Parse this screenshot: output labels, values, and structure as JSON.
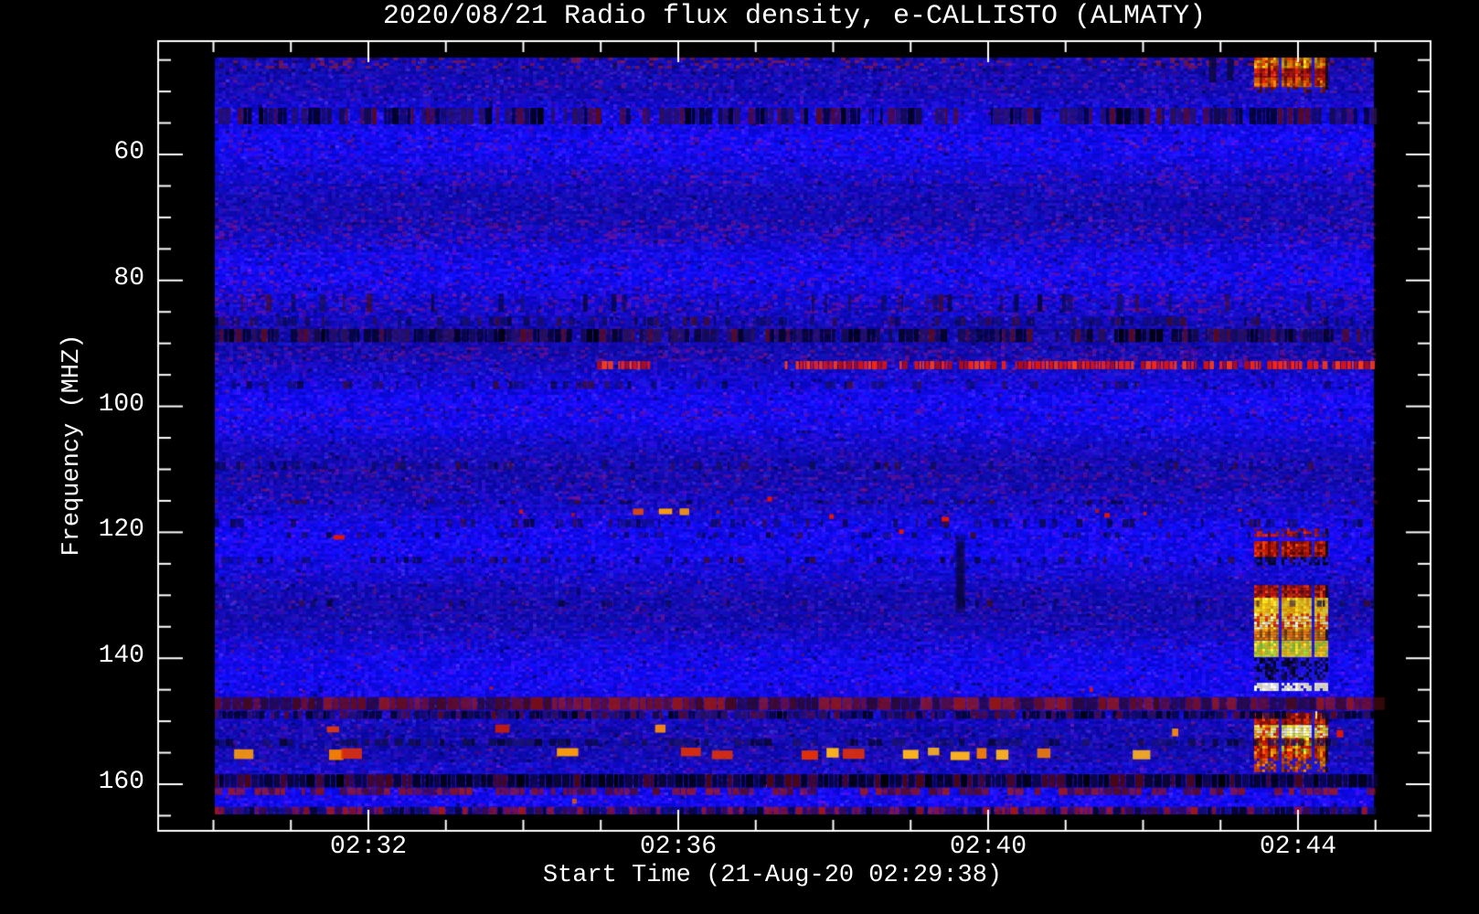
{
  "chart_data": {
    "type": "heatmap",
    "variant": "solar-radio-spectrogram",
    "title": "2020/08/21  Radio flux density, e-CALLISTO (ALMATY)",
    "xlabel": "Start Time (21-Aug-20 02:29:38)",
    "ylabel": "Frequency (MHZ)",
    "x_axis": {
      "tick_labels": [
        "02:32",
        "02:36",
        "02:40",
        "02:44"
      ],
      "minor_tick_step_seconds": 60,
      "axis_start": "02:30:00",
      "axis_end": "02:45:00"
    },
    "y_axis": {
      "tick_labels": [
        "60",
        "80",
        "100",
        "120",
        "140",
        "160"
      ],
      "minor_tick_step_mhz": 5,
      "unit": "MHz",
      "direction": "increasing-downward"
    },
    "data_extent": {
      "time": [
        "02:30:01",
        "02:44:59"
      ],
      "freq_mhz": [
        44.6,
        164.8
      ]
    },
    "palette": {
      "background_blue": "#1919e1",
      "dim_blue": "#0d0dc0",
      "mottle_purple": "#8c1482",
      "rfi_red": "#e11505",
      "rfi_orange": "#ff9d08",
      "burst_yellow": "#ffe63a",
      "burst_white": "#ffffff",
      "burst_green": "#9cd43a",
      "band_black": "#03031e",
      "band_navy": "#0e0e4c",
      "band_darkred": "#7a0e10",
      "frame_white": "#ffffff"
    },
    "rfi_bands": [
      {
        "freq_mhz": [
          44.6,
          46.0
        ],
        "kind": "mottle-strong",
        "intensity": 0.55
      },
      {
        "freq_mhz": [
          48.2,
          49.4
        ],
        "kind": "mottle",
        "intensity": 0.3
      },
      {
        "freq_mhz": [
          52.6,
          55.2
        ],
        "kind": "black-dash",
        "intensity": 0.72
      },
      {
        "freq_mhz": [
          57.2,
          59.0
        ],
        "kind": "mottle",
        "intensity": 0.3
      },
      {
        "freq_mhz": [
          62.4,
          64.6
        ],
        "kind": "mottle",
        "intensity": 0.28
      },
      {
        "freq_mhz": [
          70.0,
          74.4
        ],
        "kind": "mottle",
        "intensity": 0.38
      },
      {
        "freq_mhz": [
          77.0,
          79.0
        ],
        "kind": "mottle",
        "intensity": 0.25
      },
      {
        "freq_mhz": [
          79.6,
          81.6
        ],
        "kind": "mottle",
        "intensity": 0.3
      },
      {
        "freq_mhz": [
          82.2,
          85.0
        ],
        "kind": "mottle-dash",
        "intensity": 0.5
      },
      {
        "freq_mhz": [
          85.8,
          87.2
        ],
        "kind": "dark-dash",
        "intensity": 0.5
      },
      {
        "freq_mhz": [
          87.7,
          89.8
        ],
        "kind": "black-dash",
        "intensity": 0.85
      },
      {
        "freq_mhz": [
          90.6,
          92.4
        ],
        "kind": "mottle",
        "intensity": 0.4
      },
      {
        "freq_mhz": [
          92.8,
          94.1
        ],
        "kind": "red-dash",
        "intensity": 0.9,
        "segments": [
          [
            "02:34:57",
            "02:35:43"
          ],
          [
            "02:37:20",
            "02:44:59"
          ]
        ]
      },
      {
        "freq_mhz": [
          96.0,
          97.2
        ],
        "kind": "dark-dash",
        "intensity": 0.3
      },
      {
        "freq_mhz": [
          100.3,
          102.3
        ],
        "kind": "mottle",
        "intensity": 0.25
      },
      {
        "freq_mhz": [
          108.8,
          110.0
        ],
        "kind": "dark-dash",
        "intensity": 0.3
      },
      {
        "freq_mhz": [
          110.0,
          115.2
        ],
        "kind": "mottle-wave",
        "intensity": 0.4
      },
      {
        "freq_mhz": [
          114.9,
          115.5
        ],
        "kind": "dark-dash",
        "intensity": 0.3
      },
      {
        "freq_mhz": [
          116.2,
          117.7
        ],
        "kind": "red-speckle",
        "intensity": 0.25,
        "orange_segments": [
          [
            "02:35:01",
            "02:35:39"
          ],
          [
            "02:35:45",
            "02:35:51"
          ],
          [
            "02:36:01",
            "02:36:11"
          ]
        ]
      },
      {
        "freq_mhz": [
          117.9,
          119.2
        ],
        "kind": "dark-dash",
        "intensity": 0.35
      },
      {
        "freq_mhz": [
          120.0,
          120.9
        ],
        "kind": "dark-dash",
        "intensity": 0.25
      },
      {
        "freq_mhz": [
          123.9,
          124.9
        ],
        "kind": "dark-dash",
        "intensity": 0.28
      },
      {
        "freq_mhz": [
          130.8,
          131.8
        ],
        "kind": "dark-dash",
        "intensity": 0.18
      },
      {
        "freq_mhz": [
          143.4,
          145.6
        ],
        "kind": "red-speckle",
        "intensity": 0.1
      },
      {
        "freq_mhz": [
          146.2,
          148.2
        ],
        "kind": "darkred-blocks",
        "intensity": 0.88
      },
      {
        "freq_mhz": [
          148.4,
          149.6
        ],
        "kind": "black-dash",
        "intensity": 0.85,
        "bright_ticks": true
      },
      {
        "freq_mhz": [
          150.4,
          152.6
        ],
        "kind": "warm-blobs",
        "intensity": 0.3
      },
      {
        "freq_mhz": [
          152.8,
          153.9
        ],
        "kind": "navy-dash",
        "intensity": 0.6
      },
      {
        "freq_mhz": [
          154.2,
          156.2
        ],
        "kind": "orange-dash",
        "intensity": 0.9,
        "segments": [
          [
            "02:30:16",
            "02:30:36"
          ],
          [
            "02:31:00",
            "02:31:32"
          ],
          [
            "02:31:39",
            "02:31:46"
          ],
          [
            "02:34:26",
            "02:34:33"
          ],
          [
            "02:36:02",
            "02:36:42"
          ],
          [
            "02:37:17",
            "02:38:13"
          ],
          [
            "02:38:54",
            "02:40:10"
          ],
          [
            "02:40:38",
            "02:40:48"
          ],
          [
            "02:41:52",
            "02:42:08"
          ],
          [
            "02:42:24",
            "02:42:37"
          ],
          [
            "02:42:47",
            "02:42:54"
          ]
        ]
      },
      {
        "freq_mhz": [
          158.4,
          160.5
        ],
        "kind": "black-dense",
        "intensity": 0.9
      },
      {
        "freq_mhz": [
          160.6,
          161.7
        ],
        "kind": "darkred-row",
        "intensity": 0.6
      },
      {
        "freq_mhz": [
          162.0,
          163.4
        ],
        "kind": "orange-speckle",
        "intensity": 0.3
      },
      {
        "freq_mhz": [
          163.6,
          164.8
        ],
        "kind": "redblue-dense",
        "intensity": 0.8
      }
    ],
    "burst": {
      "time": [
        "02:43:26",
        "02:44:23"
      ],
      "gaps": [
        [
          "02:43:44",
          "02:43:47"
        ],
        [
          "02:44:09",
          "02:44:11"
        ]
      ],
      "blocks": [
        {
          "freq_mhz": [
            44.6,
            46.3
          ],
          "style": "orange-hot"
        },
        {
          "freq_mhz": [
            46.3,
            47.8
          ],
          "style": "red-hot"
        },
        {
          "freq_mhz": [
            47.8,
            49.3
          ],
          "style": "orangered-hot"
        },
        {
          "freq_mhz": [
            49.3,
            49.9
          ],
          "style": "darkred-fade"
        },
        {
          "freq_mhz": [
            119.4,
            120.5
          ],
          "style": "red-dashrow"
        },
        {
          "freq_mhz": [
            121.4,
            123.6
          ],
          "style": "red-solid"
        },
        {
          "freq_mhz": [
            123.9,
            124.8
          ],
          "style": "navy-dashrow"
        },
        {
          "freq_mhz": [
            128.4,
            130.2
          ],
          "style": "red-solid"
        },
        {
          "freq_mhz": [
            130.4,
            132.7
          ],
          "style": "yellow"
        },
        {
          "freq_mhz": [
            132.9,
            135.2
          ],
          "style": "yellow-white-mixed"
        },
        {
          "freq_mhz": [
            135.4,
            137.1
          ],
          "style": "orange"
        },
        {
          "freq_mhz": [
            137.2,
            139.5
          ],
          "style": "yellow-green"
        },
        {
          "freq_mhz": [
            140.0,
            143.2
          ],
          "style": "navy-dashrow"
        },
        {
          "freq_mhz": [
            143.9,
            144.8
          ],
          "style": "white-row"
        },
        {
          "freq_mhz": [
            148.7,
            150.6
          ],
          "style": "red-solid"
        },
        {
          "freq_mhz": [
            150.6,
            152.6
          ],
          "style": "yellow-white-core"
        },
        {
          "freq_mhz": [
            152.6,
            155.9
          ],
          "style": "red-orange-core"
        },
        {
          "freq_mhz": [
            155.9,
            157.8
          ],
          "style": "orange-fade"
        }
      ]
    },
    "dark_streak": {
      "time": [
        "02:39:36",
        "02:39:41"
      ],
      "freq_mhz": [
        121.5,
        131.7
      ]
    },
    "spots": [
      {
        "time": "02:44:30",
        "freq_mhz": 152.0,
        "color": "red",
        "w": 7,
        "h": 8
      },
      {
        "time": "02:31:33",
        "freq_mhz": 120.8,
        "color": "red",
        "w": 12,
        "h": 5
      },
      {
        "time": "02:37:09",
        "freq_mhz": 114.7,
        "color": "red",
        "w": 5,
        "h": 5
      },
      {
        "time": "02:37:57",
        "freq_mhz": 117.5,
        "color": "red",
        "w": 5,
        "h": 5
      },
      {
        "time": "02:38:51",
        "freq_mhz": 119.9,
        "color": "red",
        "w": 5,
        "h": 5
      },
      {
        "time": "02:39:24",
        "freq_mhz": 117.9,
        "color": "red",
        "w": 8,
        "h": 5
      },
      {
        "time": "02:41:30",
        "freq_mhz": 117.3,
        "color": "red",
        "w": 6,
        "h": 5
      },
      {
        "time": "02:42:51",
        "freq_mhz": 46.5,
        "color": "dark",
        "w": 8,
        "h": 28
      },
      {
        "time": "02:43:05",
        "freq_mhz": 46.5,
        "color": "dark",
        "w": 7,
        "h": 24
      }
    ]
  }
}
